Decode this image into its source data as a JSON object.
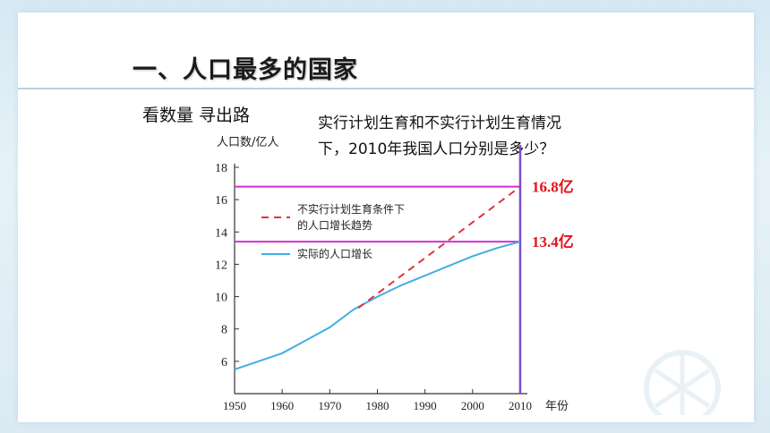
{
  "slide": {
    "title": "一、人口最多的国家",
    "subtitle": "看数量 寻出路",
    "question_line1": "实行计划生育和不实行计划生育情况",
    "question_line2": "下，2010年我国人口分别是多少？"
  },
  "colors": {
    "projection": "#e0343c",
    "actual": "#41aee3",
    "guide": "#d42fd4",
    "year2010": "#7a4fd0",
    "value_label": "#e0141c"
  },
  "chart_data": {
    "type": "line",
    "ylabel": "人口数/亿人",
    "xlabel": "年份",
    "xlim": [
      1950,
      2010
    ],
    "ylim": [
      4,
      18
    ],
    "x_ticks": [
      1950,
      1960,
      1970,
      1980,
      1990,
      2000,
      2010
    ],
    "y_ticks": [
      6,
      8,
      10,
      12,
      14,
      16,
      18
    ],
    "legend": [
      "不实行计划生育条件下的人口增长趋势",
      "实际的人口增长"
    ],
    "legend_lines": [
      [
        "不实行计划生育条件下",
        "的人口增长趋势"
      ],
      [
        "实际的人口增长"
      ]
    ],
    "series": [
      {
        "name": "实际的人口增长",
        "style": "solid",
        "x": [
          1950,
          1955,
          1960,
          1965,
          1970,
          1975,
          1980,
          1985,
          1990,
          1995,
          2000,
          2005,
          2010
        ],
        "y": [
          5.5,
          6.0,
          6.5,
          7.3,
          8.1,
          9.2,
          10.0,
          10.7,
          11.3,
          11.9,
          12.5,
          13.0,
          13.4
        ]
      },
      {
        "name": "不实行计划生育条件下的人口增长趋势",
        "style": "dashed",
        "x": [
          1976,
          2010
        ],
        "y": [
          9.3,
          16.8
        ]
      }
    ],
    "annotations": [
      {
        "text": "16.8亿",
        "y": 16.8
      },
      {
        "text": "13.4亿",
        "y": 13.4
      }
    ]
  }
}
